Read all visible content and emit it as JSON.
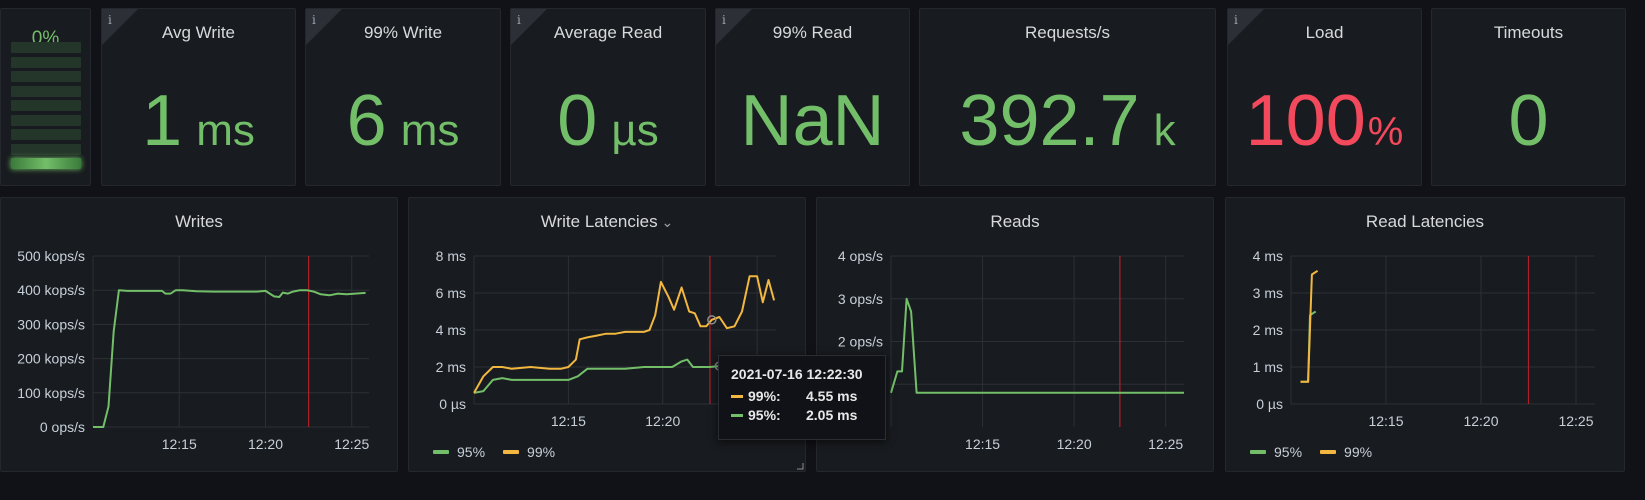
{
  "colors": {
    "green": "#73bf69",
    "yellow": "#f2b73f",
    "red_text": "#f2495c",
    "marker": "#b02027"
  },
  "gauge": {
    "label": "0%",
    "segments": 9,
    "lit_segments": 1
  },
  "stats": [
    {
      "title": "Avg Write",
      "value": "1",
      "unit": "ms",
      "info": true,
      "color": "#73bf69"
    },
    {
      "title": "99% Write",
      "value": "6",
      "unit": "ms",
      "info": true,
      "color": "#73bf69"
    },
    {
      "title": "Average Read",
      "value": "0",
      "unit": "µs",
      "info": true,
      "color": "#73bf69"
    },
    {
      "title": "99% Read",
      "value": "NaN",
      "unit": "",
      "info": true,
      "color": "#73bf69"
    },
    {
      "title": "Requests/s",
      "value": "392.7",
      "unit": "k",
      "info": false,
      "color": "#73bf69"
    },
    {
      "title": "Load",
      "value": "100",
      "unit": "%",
      "info": true,
      "color": "#f2495c"
    },
    {
      "title": "Timeouts",
      "value": "0",
      "unit": "",
      "info": false,
      "color": "#73bf69"
    }
  ],
  "info_icon": "info-icon",
  "tooltip": {
    "time": "2021-07-16 12:22:30",
    "rows": [
      {
        "label": "99%:",
        "value": "4.55 ms",
        "color": "#f2b73f"
      },
      {
        "label": "95%:",
        "value": "2.05 ms",
        "color": "#73bf69"
      }
    ]
  },
  "chart_data": [
    {
      "type": "line",
      "title": "Writes",
      "ylim": [
        0,
        500
      ],
      "yticks": [
        0,
        100,
        200,
        300,
        400,
        500
      ],
      "ytick_labels": [
        "0 ops/s",
        "100 kops/s",
        "200 kops/s",
        "300 kops/s",
        "400 kops/s",
        "500 kops/s"
      ],
      "xlim": [
        10.0,
        26.0
      ],
      "xticks": [
        15,
        20,
        25
      ],
      "xtick_labels": [
        "12:15",
        "12:20",
        "12:25"
      ],
      "marker_x": 22.5,
      "legend": [],
      "series": [
        {
          "name": "",
          "color": "#73bf69",
          "x": [
            10.0,
            10.6,
            10.9,
            11.2,
            11.5,
            12.0,
            12.5,
            13.0,
            13.5,
            14.0,
            14.2,
            14.5,
            14.8,
            15.2,
            16.0,
            17.0,
            18.0,
            19.0,
            19.5,
            20.0,
            20.5,
            20.8,
            21.0,
            21.3,
            21.6,
            22.0,
            22.4,
            22.8,
            23.2,
            23.7,
            24.2,
            24.7,
            25.2,
            25.8
          ],
          "y": [
            0,
            0,
            60,
            280,
            400,
            398,
            398,
            398,
            398,
            398,
            390,
            390,
            400,
            400,
            397,
            396,
            396,
            396,
            396,
            398,
            382,
            380,
            393,
            390,
            396,
            400,
            400,
            396,
            388,
            385,
            390,
            388,
            390,
            392
          ]
        }
      ]
    },
    {
      "type": "line",
      "title": "Write Latencies",
      "ylim": [
        0,
        8
      ],
      "yticks": [
        0,
        2,
        4,
        6,
        8
      ],
      "ytick_labels": [
        "0 µs",
        "2 ms",
        "4 ms",
        "6 ms",
        "8 ms"
      ],
      "xlim": [
        10.0,
        26.0
      ],
      "xticks": [
        15,
        20,
        25
      ],
      "xtick_labels": [
        "12:15",
        "12:20",
        "12:25"
      ],
      "marker_x": 22.5,
      "legend": [
        "95%",
        "99%"
      ],
      "series": [
        {
          "name": "95%",
          "color": "#73bf69",
          "x": [
            10.0,
            10.5,
            11.0,
            11.5,
            12.0,
            12.5,
            13.0,
            14.0,
            15.0,
            15.5,
            16.0,
            17.0,
            18.0,
            19.0,
            20.0,
            20.5,
            21.0,
            21.3,
            21.6,
            22.0,
            22.5,
            23.0
          ],
          "y": [
            0.6,
            0.7,
            1.3,
            1.4,
            1.3,
            1.3,
            1.3,
            1.3,
            1.3,
            1.5,
            1.9,
            1.9,
            1.9,
            2.0,
            2.0,
            2.0,
            2.3,
            2.4,
            2.0,
            2.0,
            2.0,
            2.05
          ]
        },
        {
          "name": "99%",
          "color": "#f2b73f",
          "x": [
            10.0,
            10.5,
            11.0,
            11.5,
            12.0,
            13.0,
            14.0,
            14.6,
            15.0,
            15.4,
            15.6,
            16.0,
            16.5,
            17.0,
            17.5,
            18.0,
            18.5,
            19.0,
            19.3,
            19.6,
            19.9,
            20.3,
            20.6,
            21.0,
            21.4,
            21.7,
            22.0,
            22.3,
            22.6,
            23.0,
            23.4,
            23.8,
            24.2,
            24.6,
            25.0,
            25.3,
            25.6,
            25.9
          ],
          "y": [
            0.6,
            1.5,
            2.0,
            2.0,
            1.9,
            2.0,
            1.9,
            1.9,
            2.0,
            2.4,
            3.5,
            3.6,
            3.7,
            3.8,
            3.8,
            3.9,
            3.9,
            3.9,
            4.0,
            4.8,
            6.6,
            5.8,
            5.1,
            6.3,
            5.0,
            4.9,
            4.2,
            4.2,
            4.55,
            4.7,
            4.1,
            4.2,
            5.0,
            6.9,
            6.9,
            5.5,
            6.7,
            5.6
          ]
        }
      ]
    },
    {
      "type": "line",
      "title": "Reads",
      "ylim": [
        0,
        4
      ],
      "yticks": [
        1,
        2,
        3,
        4
      ],
      "ytick_labels": [
        "1 ops/s",
        "2 ops/s",
        "3 ops/s",
        "4 ops/s"
      ],
      "xlim": [
        10.0,
        26.0
      ],
      "xticks": [
        15,
        20,
        25
      ],
      "xtick_labels": [
        "12:15",
        "12:20",
        "12:25"
      ],
      "marker_x": 22.5,
      "legend": [],
      "series": [
        {
          "name": "",
          "color": "#73bf69",
          "x": [
            10.0,
            10.35,
            10.6,
            10.85,
            11.1,
            11.4,
            12.0,
            14.0,
            18.0,
            22.0,
            26.0
          ],
          "y": [
            0.8,
            1.3,
            1.3,
            3.0,
            2.7,
            0.8,
            0.8,
            0.8,
            0.8,
            0.8,
            0.8
          ]
        }
      ]
    },
    {
      "type": "line",
      "title": "Read Latencies",
      "ylim": [
        0,
        4
      ],
      "yticks": [
        0,
        1,
        2,
        3,
        4
      ],
      "ytick_labels": [
        "0 µs",
        "1 ms",
        "2 ms",
        "3 ms",
        "4 ms"
      ],
      "xlim": [
        10.0,
        26.0
      ],
      "xticks": [
        15,
        20,
        25
      ],
      "xtick_labels": [
        "12:15",
        "12:20",
        "12:25"
      ],
      "marker_x": 22.5,
      "legend": [
        "95%",
        "99%"
      ],
      "series": [
        {
          "name": "95%",
          "color": "#73bf69",
          "x": [
            10.5,
            10.9,
            11.0,
            11.3
          ],
          "y": [
            0.6,
            0.6,
            2.4,
            2.5
          ]
        },
        {
          "name": "99%",
          "color": "#f2b73f",
          "x": [
            10.5,
            10.9,
            11.1,
            11.4
          ],
          "y": [
            0.6,
            0.6,
            3.5,
            3.6
          ]
        }
      ]
    }
  ]
}
